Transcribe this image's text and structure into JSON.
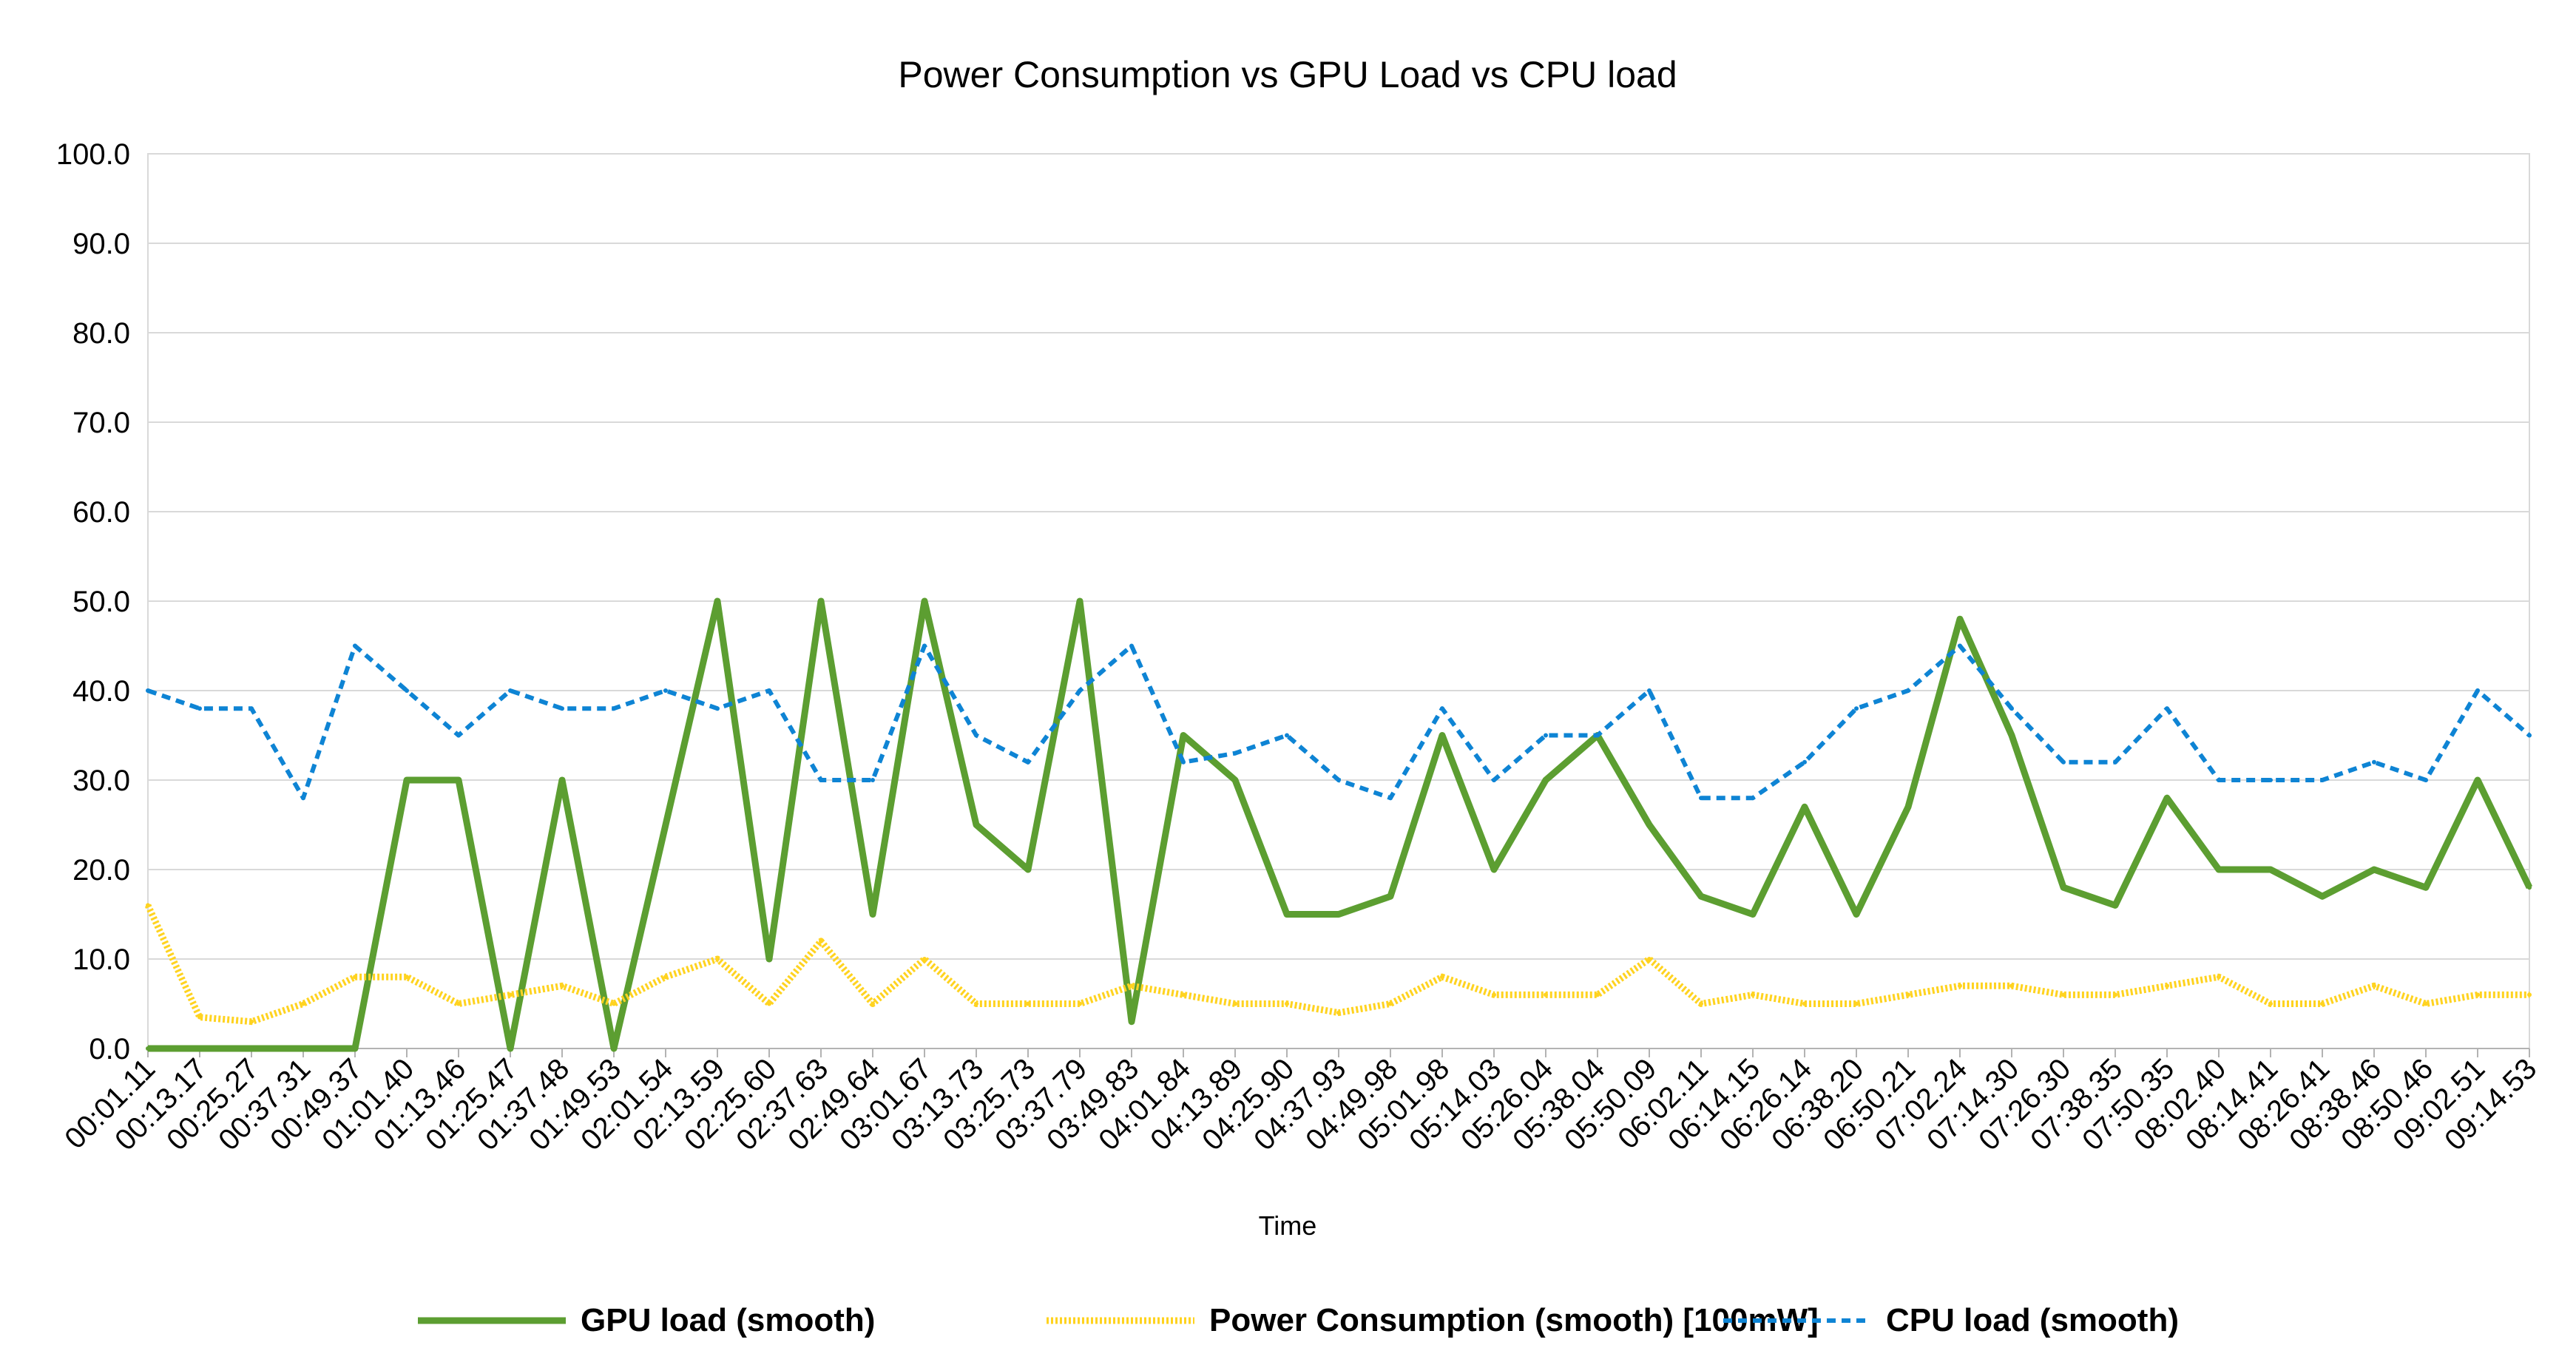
{
  "chart_data": {
    "type": "line",
    "title": "Power Consumption vs GPU Load vs CPU load",
    "xlabel": "Time",
    "ylabel": "",
    "ylim": [
      0,
      100
    ],
    "yticks": [
      "0.0",
      "10.0",
      "20.0",
      "30.0",
      "40.0",
      "50.0",
      "60.0",
      "70.0",
      "80.0",
      "90.0",
      "100.0"
    ],
    "grid": true,
    "legend_position": "bottom",
    "x": [
      "00:01.11",
      "00:13.17",
      "00:25.27",
      "00:37.31",
      "00:49.37",
      "01:01.40",
      "01:13.46",
      "01:25.47",
      "01:37.48",
      "01:49.53",
      "02:01.54",
      "02:13.59",
      "02:25.60",
      "02:37.63",
      "02:49.64",
      "03:01.67",
      "03:13.73",
      "03:25.73",
      "03:37.79",
      "03:49.83",
      "04:01.84",
      "04:13.89",
      "04:25.90",
      "04:37.93",
      "04:49.98",
      "05:01.98",
      "05:14.03",
      "05:26.04",
      "05:38.04",
      "05:50.09",
      "06:02.11",
      "06:14.15",
      "06:26.14",
      "06:38.20",
      "06:50.21",
      "07:02.24",
      "07:14.30",
      "07:26.30",
      "07:38.35",
      "07:50.35",
      "08:02.40",
      "08:14.41",
      "08:26.41",
      "08:38.46",
      "08:50.46",
      "09:02.51",
      "09:14.53"
    ],
    "series": [
      {
        "name": "GPU load (smooth)",
        "color": "#5c9e31",
        "style": "solid",
        "values": [
          0,
          0,
          0,
          0,
          0,
          30,
          30,
          0,
          30,
          0,
          25,
          50,
          10,
          50,
          15,
          50,
          25,
          20,
          50,
          3,
          35,
          30,
          15,
          15,
          17,
          35,
          20,
          30,
          35,
          25,
          17,
          15,
          27,
          15,
          27,
          48,
          35,
          18,
          16,
          28,
          20,
          20,
          17,
          20,
          18,
          30,
          18
        ]
      },
      {
        "name": "Power Consumption (smooth) [100mW]",
        "color": "#ffd320",
        "style": "dotted",
        "values": [
          16,
          3.5,
          3,
          5,
          8,
          8,
          5,
          6,
          7,
          5,
          8,
          10,
          5,
          12,
          5,
          10,
          5,
          5,
          5,
          7,
          6,
          5,
          5,
          4,
          5,
          8,
          6,
          6,
          6,
          10,
          5,
          6,
          5,
          5,
          6,
          7,
          7,
          6,
          6,
          7,
          8,
          5,
          5,
          7,
          5,
          6,
          6
        ]
      },
      {
        "name": "CPU load (smooth)",
        "color": "#0e84d4",
        "style": "dashed",
        "values": [
          40,
          38,
          38,
          28,
          45,
          40,
          35,
          40,
          38,
          38,
          40,
          38,
          40,
          30,
          30,
          45,
          35,
          32,
          40,
          45,
          32,
          33,
          35,
          30,
          28,
          38,
          30,
          35,
          35,
          40,
          28,
          28,
          32,
          38,
          40,
          45,
          38,
          32,
          32,
          38,
          30,
          30,
          30,
          32,
          30,
          40,
          35
        ]
      }
    ]
  }
}
